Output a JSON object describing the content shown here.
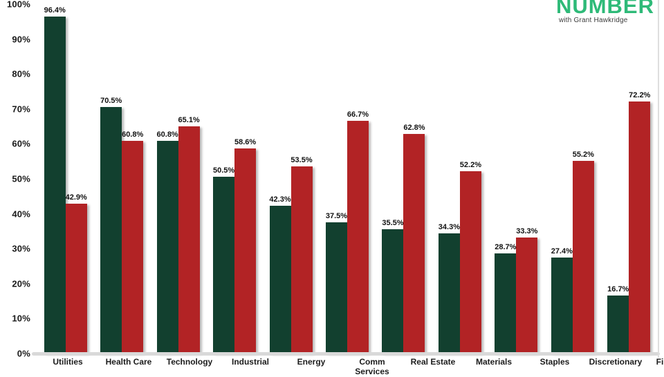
{
  "logo": {
    "title": "NUMBER",
    "subtitle": "with Grant Hawkridge",
    "color": "#2eba78"
  },
  "colors": {
    "green_bar": "#12402f",
    "red_bar": "#b22325",
    "axis_line": "#d9d9d9",
    "label_text": "#1a1a1a"
  },
  "chart_data": {
    "type": "bar",
    "title": "",
    "categories": [
      "Utilities",
      "Health Care",
      "Technology",
      "Industrial",
      "Energy",
      "Comm Services",
      "Real Estate",
      "Materials",
      "Staples",
      "Discretionary",
      "Financials"
    ],
    "series": [
      {
        "name": "green",
        "color": "#12402f",
        "values": [
          96.4,
          70.5,
          60.8,
          50.5,
          42.3,
          37.5,
          35.5,
          34.3,
          28.7,
          27.4,
          16.7
        ]
      },
      {
        "name": "red",
        "color": "#b22325",
        "values": [
          42.9,
          60.8,
          65.1,
          58.6,
          53.5,
          66.7,
          62.8,
          52.2,
          33.3,
          55.2,
          72.2
        ]
      }
    ],
    "y_ticks": [
      "100%",
      "90%",
      "80%",
      "70%",
      "60%",
      "50%",
      "40%",
      "30%",
      "20%",
      "10%",
      "0%"
    ],
    "ylim": [
      0,
      100
    ],
    "value_label_suffix": "%",
    "grid": false,
    "legend": "none"
  }
}
